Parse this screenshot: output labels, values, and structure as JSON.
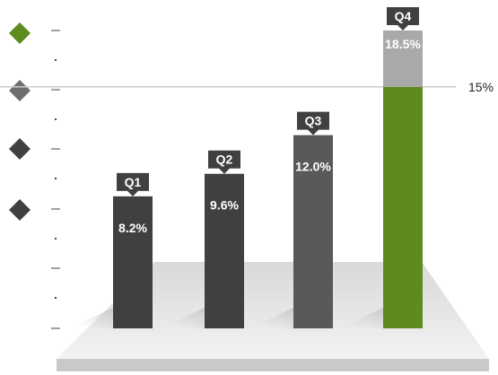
{
  "chart_data": {
    "type": "bar",
    "categories": [
      "Q1",
      "Q2",
      "Q3",
      "Q4"
    ],
    "values": [
      8.2,
      9.6,
      12.0,
      18.5
    ],
    "value_labels": [
      "8.2%",
      "9.6%",
      "12.0%",
      "18.5%"
    ],
    "reference_line": {
      "value": 15,
      "label": "15%"
    },
    "title": "",
    "xlabel": "",
    "ylabel": "",
    "ylim": [
      0,
      20
    ],
    "grid": false,
    "legend": {
      "placement": "left",
      "entries": []
    },
    "colors": {
      "q1": "#404040",
      "q2": "#404040",
      "q3": "#595959",
      "q4": "#5f8a1e",
      "q4_above_reference": "#a9a9a9",
      "tag": "#404040",
      "floor": "#e6e6e6",
      "floor_edge": "#c9c9c9",
      "reference_line": "#cccccc",
      "legend_markers": [
        "#5f8a1e",
        "#6e6e6e",
        "#404040",
        "#404040"
      ]
    }
  }
}
